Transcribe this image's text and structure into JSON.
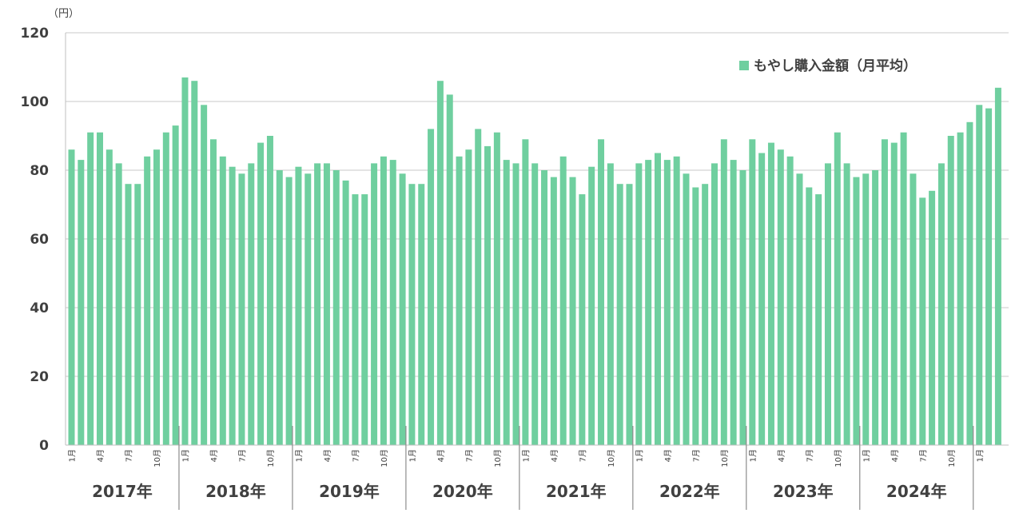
{
  "chart_data": {
    "type": "bar",
    "unit_label": "（円）",
    "ylim": [
      0,
      120
    ],
    "yticks": [
      0,
      20,
      40,
      60,
      80,
      100,
      120
    ],
    "grid": true,
    "legend_position": "top-right",
    "series": [
      {
        "name": "もやし購入金額（月平均）",
        "color": "#6fcf9f",
        "values": [
          86,
          83,
          91,
          91,
          86,
          82,
          76,
          76,
          84,
          86,
          91,
          93,
          107,
          106,
          99,
          89,
          84,
          81,
          79,
          82,
          88,
          90,
          80,
          78,
          81,
          79,
          82,
          82,
          80,
          77,
          73,
          73,
          82,
          84,
          83,
          79,
          76,
          76,
          92,
          106,
          102,
          84,
          86,
          92,
          87,
          91,
          83,
          82,
          89,
          82,
          80,
          78,
          84,
          78,
          73,
          81,
          89,
          82,
          76,
          76,
          82,
          83,
          85,
          83,
          84,
          79,
          75,
          76,
          82,
          89,
          83,
          80,
          89,
          85,
          88,
          86,
          84,
          79,
          75,
          73,
          82,
          91,
          82,
          78,
          79,
          80,
          89,
          88,
          91,
          79,
          72,
          74,
          82,
          90,
          91,
          94,
          99,
          98,
          104
        ]
      }
    ],
    "month_labels": [
      "1月",
      "4月",
      "7月",
      "10月"
    ],
    "years": [
      "2017年",
      "2018年",
      "2019年",
      "2020年",
      "2021年",
      "2022年",
      "2023年",
      "2024年"
    ]
  }
}
